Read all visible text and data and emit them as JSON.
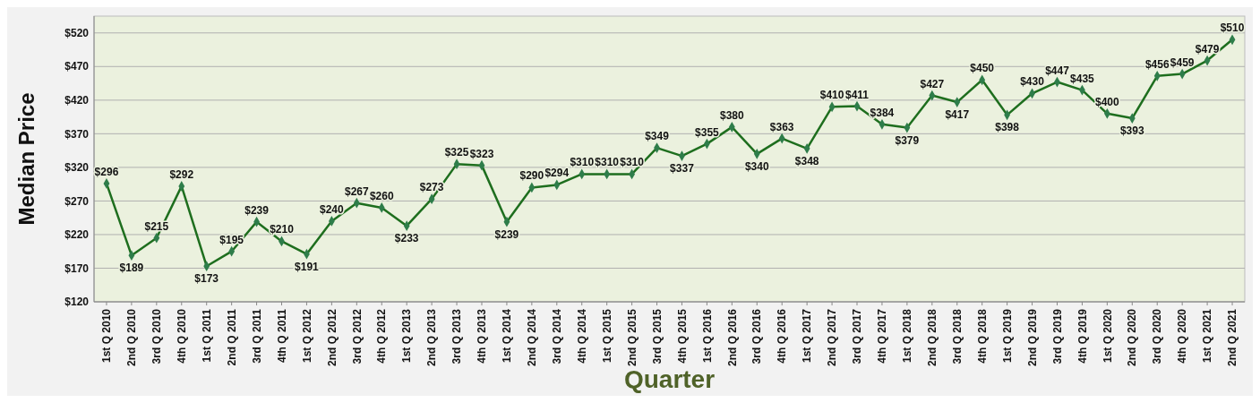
{
  "chart_data": {
    "type": "line",
    "xlabel": "Quarter",
    "ylabel": "Median Price",
    "categories": [
      "1st Q 2010",
      "2nd Q 2010",
      "3rd Q 2010",
      "4th Q 2010",
      "1st Q 2011",
      "2nd Q 2011",
      "3rd Q 2011",
      "4th Q 2011",
      "1st Q 2012",
      "2nd Q 2012",
      "3rd Q 2012",
      "4th Q 2012",
      "1st Q 2013",
      "2nd Q 2013",
      "3rd Q 2013",
      "4th Q 2013",
      "1st Q 2014",
      "2nd Q 2014",
      "3rd Q 2014",
      "4th Q 2014",
      "1st Q 2015",
      "2nd Q 2015",
      "3rd Q 2015",
      "4th Q 2015",
      "1st Q 2016",
      "2nd Q 2016",
      "3rd Q 2016",
      "4th Q 2016",
      "1st Q 2017",
      "2nd Q 2017",
      "3rd Q 2017",
      "4th Q 2017",
      "1st Q 2018",
      "2nd Q 2018",
      "3rd Q 2018",
      "4th Q 2018",
      "1st Q 2019",
      "2nd Q 2019",
      "3rd Q 2019",
      "4th Q 2019",
      "1st Q 2020",
      "2nd Q 2020",
      "3rd Q 2020",
      "4th Q 2020",
      "1st Q 2021",
      "2nd Q 2021"
    ],
    "series": [
      {
        "color": "#1e6e1e",
        "values": [
          296,
          189,
          215,
          292,
          173,
          195,
          239,
          210,
          191,
          240,
          267,
          260,
          233,
          273,
          325,
          323,
          239,
          290,
          294,
          310,
          310,
          310,
          349,
          337,
          355,
          380,
          340,
          363,
          348,
          410,
          411,
          384,
          379,
          427,
          417,
          450,
          398,
          430,
          447,
          435,
          400,
          393,
          456,
          459,
          479,
          510
        ],
        "value_labels": [
          "$296",
          "$189",
          "$215",
          "$292",
          "$173",
          "$195",
          "$239",
          "$210",
          "$191",
          "$240",
          "$267",
          "$260",
          "$233",
          "$273",
          "$325",
          "$323",
          "$239",
          "$290",
          "$294",
          "$310",
          "$310",
          "$310",
          "$349",
          "$337",
          "$355",
          "$380",
          "$340",
          "$363",
          "$348",
          "$410",
          "$411",
          "$384",
          "$379",
          "$427",
          "$417",
          "$450",
          "$398",
          "$430",
          "$447",
          "$435",
          "$400",
          "$393",
          "$456",
          "$459",
          "$479",
          "$510"
        ]
      }
    ],
    "ylim": [
      120,
      545
    ],
    "yticks": [
      {
        "value": 120,
        "label": "$120"
      },
      {
        "value": 170,
        "label": "$170"
      },
      {
        "value": 220,
        "label": "$220"
      },
      {
        "value": 270,
        "label": "$270"
      },
      {
        "value": 320,
        "label": "$320"
      },
      {
        "value": 370,
        "label": "$370"
      },
      {
        "value": 420,
        "label": "$420"
      },
      {
        "value": 470,
        "label": "$470"
      },
      {
        "value": 520,
        "label": "$520"
      }
    ],
    "grid": "y",
    "marker": "diamond",
    "line_style": "solid"
  }
}
